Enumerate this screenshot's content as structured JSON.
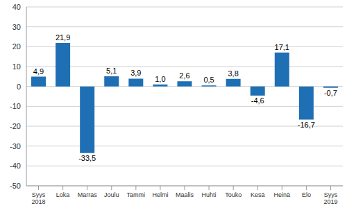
{
  "chart_data": {
    "type": "bar",
    "categories": [
      "Syys 2018",
      "Loka",
      "Marras",
      "Joulu",
      "Tammi",
      "Helmi",
      "Maalis",
      "Huhti",
      "Touko",
      "Kesä",
      "Heinä",
      "Elo",
      "Syys 2019"
    ],
    "values": [
      4.9,
      21.9,
      -33.5,
      5.1,
      3.9,
      1.0,
      2.6,
      0.5,
      3.8,
      -4.6,
      17.1,
      -16.7,
      -0.7
    ],
    "value_labels": [
      "4,9",
      "21,9",
      "-33,5",
      "5,1",
      "3,9",
      "1,0",
      "2,6",
      "0,5",
      "3,8",
      "-4,6",
      "17,1",
      "-16,7",
      "-0,7"
    ],
    "color": "#1f6fb4",
    "ylim": [
      -50,
      40
    ],
    "yticks": [
      -50,
      -40,
      -30,
      -20,
      -10,
      0,
      10,
      20,
      30,
      40
    ],
    "grid": true,
    "data_labels": true
  }
}
